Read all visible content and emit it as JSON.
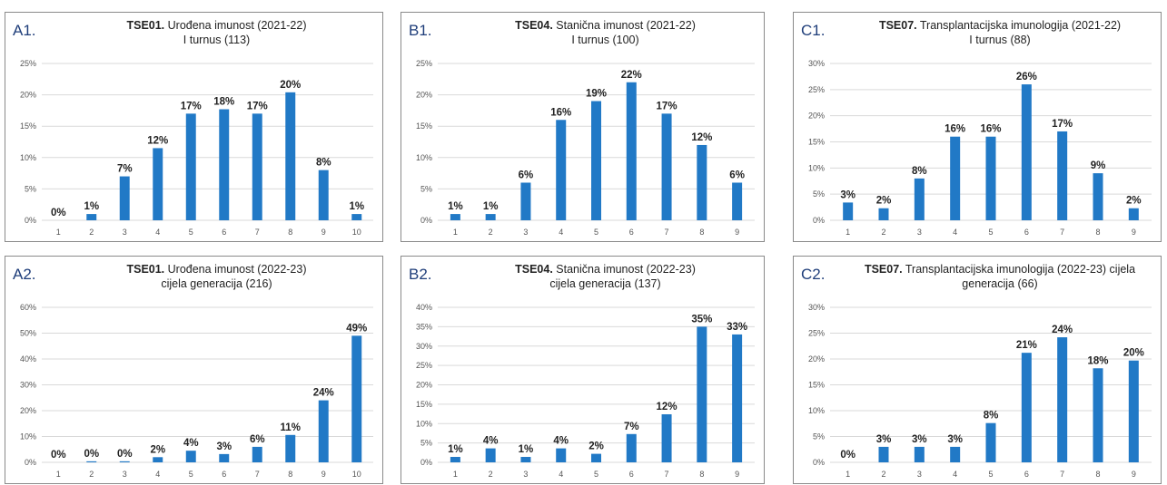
{
  "bar_color": "#2179c6",
  "grid_color": "#d9d9d9",
  "chart_data": [
    {
      "id": "A1",
      "type": "bar",
      "panel_label": "A1.",
      "title_code": "TSE01.",
      "title_rest": "Urođena imunost (2021-22)",
      "title_line2": "I turnus (113)",
      "categories": [
        "1",
        "2",
        "3",
        "4",
        "5",
        "6",
        "7",
        "8",
        "9",
        "10"
      ],
      "values": [
        0,
        1,
        7,
        11.5,
        17,
        17.7,
        17,
        20.4,
        8,
        1
      ],
      "labels": [
        "0%",
        "1%",
        "7%",
        "12%",
        "17%",
        "18%",
        "17%",
        "20%",
        "8%",
        "1%"
      ],
      "ylim": [
        0,
        25
      ],
      "yticks": [
        "0%",
        "5%",
        "10%",
        "15%",
        "20%",
        "25%"
      ],
      "grid": true
    },
    {
      "id": "B1",
      "type": "bar",
      "panel_label": "B1.",
      "title_code": "TSE04.",
      "title_rest": "Stanična imunost (2021-22)",
      "title_line2": "I turnus (100)",
      "categories": [
        "1",
        "2",
        "3",
        "4",
        "5",
        "6",
        "7",
        "8",
        "9"
      ],
      "values": [
        1,
        1,
        6,
        16,
        19,
        22,
        17,
        12,
        6
      ],
      "labels": [
        "1%",
        "1%",
        "6%",
        "16%",
        "19%",
        "22%",
        "17%",
        "12%",
        "6%"
      ],
      "ylim": [
        0,
        25
      ],
      "yticks": [
        "0%",
        "5%",
        "10%",
        "15%",
        "20%",
        "25%"
      ],
      "grid": true
    },
    {
      "id": "C1",
      "type": "bar",
      "panel_label": "C1.",
      "title_code": "TSE07.",
      "title_rest": "Transplantacijska imunologija (2021-22)",
      "title_line2": "I turnus  (88)",
      "categories": [
        "1",
        "2",
        "3",
        "4",
        "5",
        "6",
        "7",
        "8",
        "9"
      ],
      "values": [
        3.4,
        2.3,
        8,
        16,
        16,
        26,
        17,
        9,
        2.3
      ],
      "labels": [
        "3%",
        "2%",
        "8%",
        "16%",
        "16%",
        "26%",
        "17%",
        "9%",
        "2%"
      ],
      "ylim": [
        0,
        30
      ],
      "yticks": [
        "0%",
        "5%",
        "10%",
        "15%",
        "20%",
        "25%",
        "30%"
      ],
      "grid": true
    },
    {
      "id": "A2",
      "type": "bar",
      "panel_label": "A2.",
      "title_code": "TSE01.",
      "title_rest": "Urođena imunost (2022-23)",
      "title_line2": "cijela generacija (216)",
      "categories": [
        "1",
        "2",
        "3",
        "4",
        "5",
        "6",
        "7",
        "8",
        "9",
        "10"
      ],
      "values": [
        0,
        0.4,
        0.4,
        2,
        4.5,
        3.2,
        6,
        10.6,
        24,
        49
      ],
      "labels": [
        "0%",
        "0%",
        "0%",
        "2%",
        "4%",
        "3%",
        "6%",
        "11%",
        "24%",
        "49%"
      ],
      "ylim": [
        0,
        60
      ],
      "yticks": [
        "0%",
        "10%",
        "20%",
        "30%",
        "40%",
        "50%",
        "60%"
      ],
      "grid": true
    },
    {
      "id": "B2",
      "type": "bar",
      "panel_label": "B2.",
      "title_code": "TSE04.",
      "title_rest": "Stanična imunost (2022-23)",
      "title_line2": "cijela generacija (137)",
      "categories": [
        "1",
        "2",
        "3",
        "4",
        "5",
        "6",
        "7",
        "8",
        "9"
      ],
      "values": [
        1.4,
        3.6,
        1.4,
        3.6,
        2.2,
        7.3,
        12.4,
        35,
        33
      ],
      "labels": [
        "1%",
        "4%",
        "1%",
        "4%",
        "2%",
        "7%",
        "12%",
        "35%",
        "33%"
      ],
      "ylim": [
        0,
        40
      ],
      "yticks": [
        "0%",
        "5%",
        "10%",
        "15%",
        "20%",
        "25%",
        "30%",
        "35%",
        "40%"
      ],
      "grid": true
    },
    {
      "id": "C2",
      "type": "bar",
      "panel_label": "C2.",
      "title_code": "TSE07.",
      "title_rest": "Transplantacijska imunologija (2022-23) cijela",
      "title_line2": "generacija (66)",
      "categories": [
        "1",
        "2",
        "3",
        "4",
        "5",
        "6",
        "7",
        "8",
        "9"
      ],
      "values": [
        0,
        3,
        3,
        3,
        7.6,
        21.2,
        24.2,
        18.2,
        19.7
      ],
      "labels": [
        "0%",
        "3%",
        "3%",
        "3%",
        "8%",
        "21%",
        "24%",
        "18%",
        "20%"
      ],
      "ylim": [
        0,
        30
      ],
      "yticks": [
        "0%",
        "5%",
        "10%",
        "15%",
        "20%",
        "25%",
        "30%"
      ],
      "grid": true
    }
  ]
}
